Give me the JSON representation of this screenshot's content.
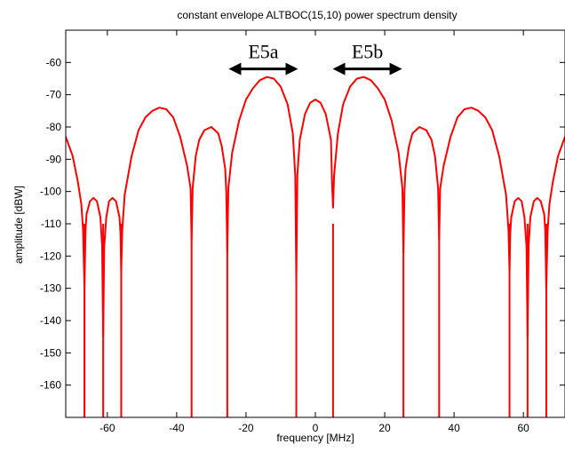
{
  "chart_data": {
    "type": "line",
    "title": "constant envelope ALTBOC(15,10) power spectrum density",
    "xlabel": "frequency [MHz]",
    "ylabel": "amplitude [dBW]",
    "xlim": [
      -72,
      72
    ],
    "ylim": [
      -170,
      -50
    ],
    "xticks": [
      -60,
      -40,
      -20,
      0,
      20,
      40,
      60
    ],
    "yticks": [
      -60,
      -70,
      -80,
      -90,
      -100,
      -110,
      -120,
      -130,
      -140,
      -150,
      -160
    ],
    "grid": false,
    "line_color": "#ff0000",
    "series": [
      {
        "points": [
          [
            -72,
            -83
          ],
          [
            -70,
            -89
          ],
          [
            -68.5,
            -97
          ],
          [
            -67.5,
            -104
          ],
          [
            -67,
            -112
          ],
          [
            -66.6,
            -130
          ],
          [
            -66.3,
            -112
          ],
          [
            -66,
            -107
          ],
          [
            -65,
            -103
          ],
          [
            -64,
            -102
          ],
          [
            -63,
            -103
          ],
          [
            -62,
            -108
          ],
          [
            -61.5,
            -117
          ],
          [
            -61.2,
            -145
          ],
          [
            -60.9,
            -117
          ],
          [
            -60.3,
            -108
          ],
          [
            -59.5,
            -103
          ],
          [
            -58.5,
            -102
          ],
          [
            -57.5,
            -103
          ],
          [
            -56.5,
            -108
          ],
          [
            -56.2,
            -113
          ],
          [
            -56,
            -125
          ],
          [
            -55.7,
            -112
          ],
          [
            -55,
            -101
          ],
          [
            -53,
            -89
          ],
          [
            -51,
            -81
          ],
          [
            -49,
            -77
          ],
          [
            -47,
            -75
          ],
          [
            -45,
            -74
          ],
          [
            -43,
            -74.5
          ],
          [
            -41,
            -77
          ],
          [
            -39,
            -83
          ],
          [
            -37,
            -92
          ],
          [
            -36,
            -99
          ],
          [
            -35.7,
            -115
          ],
          [
            -35.4,
            -99
          ],
          [
            -34.5,
            -89
          ],
          [
            -33.5,
            -84
          ],
          [
            -32,
            -81
          ],
          [
            -30,
            -80
          ],
          [
            -28,
            -82
          ],
          [
            -27,
            -86
          ],
          [
            -26,
            -93
          ],
          [
            -25.7,
            -100
          ],
          [
            -25.4,
            -119
          ],
          [
            -25.1,
            -99
          ],
          [
            -24,
            -88
          ],
          [
            -22,
            -78
          ],
          [
            -20,
            -71.5
          ],
          [
            -18,
            -68
          ],
          [
            -16,
            -65.5
          ],
          [
            -14,
            -64.5
          ],
          [
            -12,
            -65
          ],
          [
            -10,
            -67.5
          ],
          [
            -8,
            -73
          ],
          [
            -6.5,
            -82
          ],
          [
            -5.8,
            -95
          ],
          [
            -5.5,
            -128
          ],
          [
            -5.2,
            -95
          ],
          [
            -4.5,
            -84
          ],
          [
            -3,
            -76
          ],
          [
            -1.5,
            -72.5
          ],
          [
            0,
            -71.5
          ],
          [
            1.5,
            -72.5
          ],
          [
            3,
            -76
          ],
          [
            4.5,
            -84
          ],
          [
            4.8,
            -97
          ],
          [
            5.1,
            -105
          ],
          [
            5.4,
            -95
          ],
          [
            6.5,
            -82
          ],
          [
            8,
            -73
          ],
          [
            10,
            -67.5
          ],
          [
            12,
            -65
          ],
          [
            14,
            -64.5
          ],
          [
            16,
            -65.5
          ],
          [
            18,
            -68
          ],
          [
            20,
            -71.5
          ],
          [
            22,
            -78
          ],
          [
            24,
            -88
          ],
          [
            25.1,
            -99
          ],
          [
            25.4,
            -119
          ],
          [
            25.7,
            -100
          ],
          [
            26,
            -93
          ],
          [
            27,
            -86
          ],
          [
            28,
            -82
          ],
          [
            30,
            -80
          ],
          [
            32,
            -81
          ],
          [
            33.5,
            -84
          ],
          [
            34.5,
            -89
          ],
          [
            35.4,
            -99
          ],
          [
            35.7,
            -115
          ],
          [
            36,
            -99
          ],
          [
            37,
            -92
          ],
          [
            39,
            -83
          ],
          [
            41,
            -77
          ],
          [
            43,
            -74.5
          ],
          [
            45,
            -74
          ],
          [
            47,
            -75
          ],
          [
            49,
            -77
          ],
          [
            51,
            -81
          ],
          [
            53,
            -89
          ],
          [
            55,
            -101
          ],
          [
            55.7,
            -112
          ],
          [
            56,
            -125
          ],
          [
            56.2,
            -113
          ],
          [
            56.5,
            -108
          ],
          [
            57.5,
            -103
          ],
          [
            58.5,
            -102
          ],
          [
            59.5,
            -103
          ],
          [
            60.3,
            -108
          ],
          [
            60.9,
            -117
          ],
          [
            61.2,
            -145
          ],
          [
            61.5,
            -117
          ],
          [
            62,
            -108
          ],
          [
            63,
            -103
          ],
          [
            64,
            -102
          ],
          [
            65,
            -103
          ],
          [
            66,
            -107
          ],
          [
            66.3,
            -112
          ],
          [
            66.6,
            -130
          ],
          [
            67,
            -112
          ],
          [
            67.5,
            -104
          ],
          [
            68.5,
            -97
          ],
          [
            70,
            -89
          ],
          [
            72,
            -83
          ]
        ]
      }
    ],
    "nulls": [
      -66.6,
      -61.2,
      -56,
      -35.7,
      -25.4,
      -5.5,
      5.1,
      25.4,
      35.7,
      56,
      61.2,
      66.6
    ],
    "annotations": [
      {
        "text": "E5a",
        "arrow_from": -25,
        "arrow_to": -5,
        "y": -62
      },
      {
        "text": "E5b",
        "arrow_from": 5,
        "arrow_to": 25,
        "y": -62
      }
    ]
  }
}
